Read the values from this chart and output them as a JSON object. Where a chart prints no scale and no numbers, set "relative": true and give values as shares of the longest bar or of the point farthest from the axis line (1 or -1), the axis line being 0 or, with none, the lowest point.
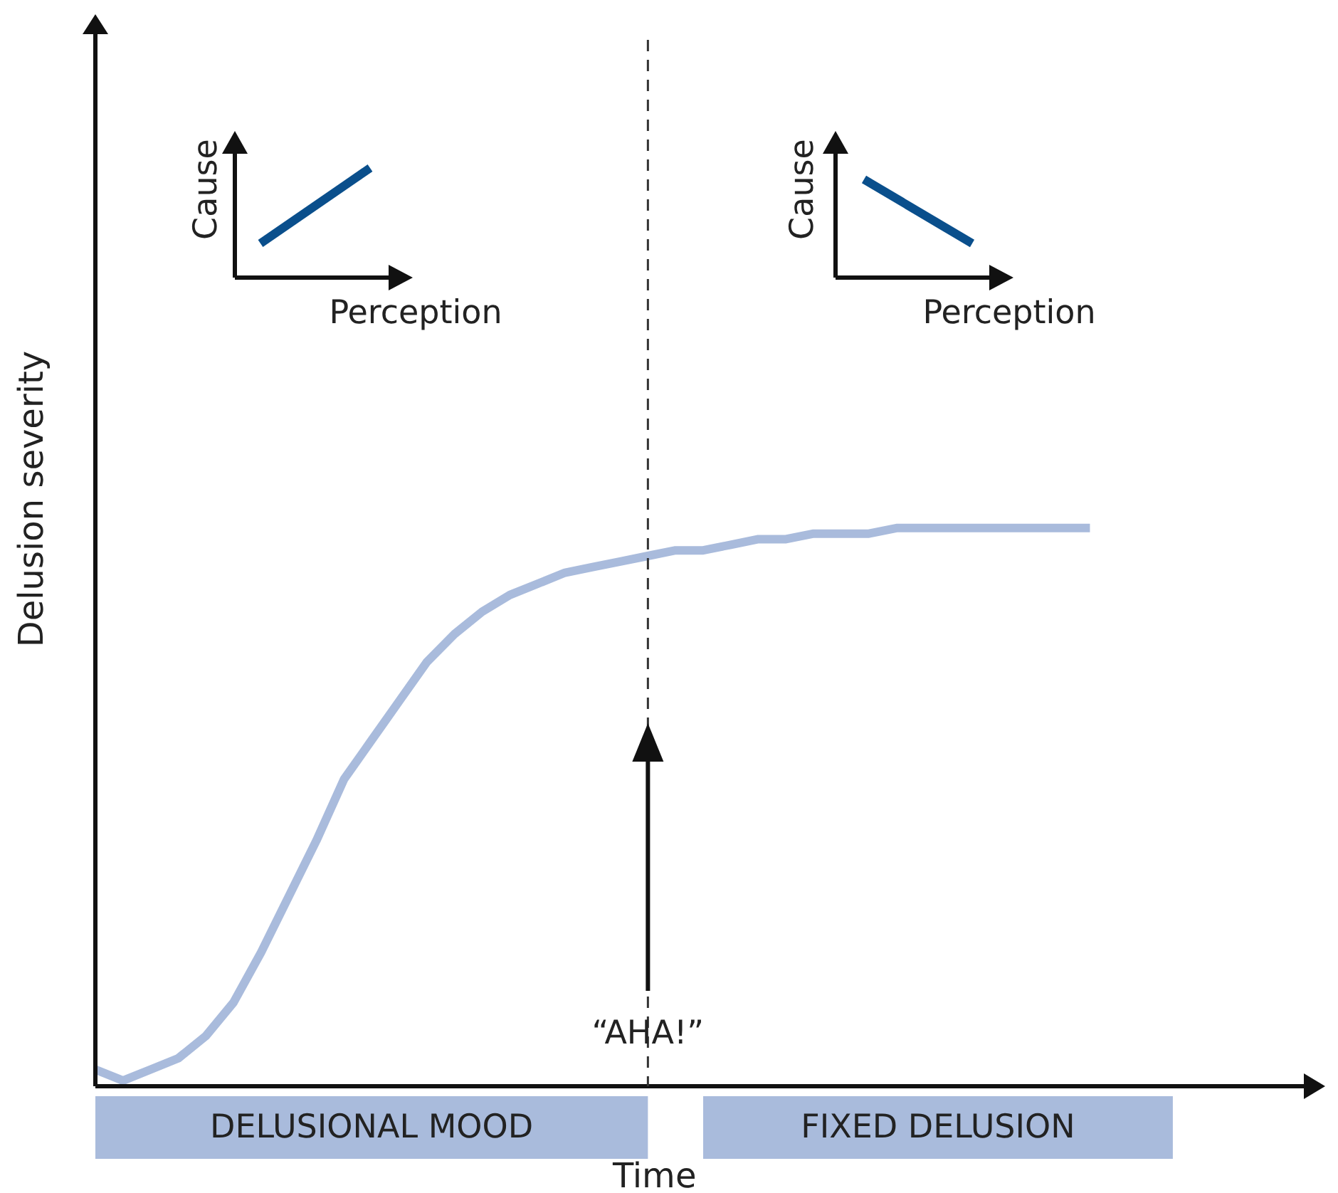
{
  "chart_data": {
    "type": "line",
    "relative": true,
    "xlabel": "Time",
    "ylabel": "Delusion severity",
    "categories": [
      null,
      null,
      null,
      null,
      null,
      null,
      null,
      null,
      null,
      null,
      null,
      null,
      null,
      null,
      null,
      null,
      null,
      null,
      null,
      null,
      null,
      null,
      null,
      null,
      null,
      null,
      null,
      null,
      null,
      null,
      null,
      null,
      null,
      null,
      null,
      null,
      null,
      null,
      null,
      null,
      null,
      null,
      null,
      null,
      null
    ],
    "series": [
      {
        "color": "#a9bbdc",
        "values": [
          0.03,
          0.01,
          0.03,
          0.05,
          0.09,
          0.15,
          0.24,
          0.34,
          0.44,
          0.55,
          0.62,
          0.69,
          0.76,
          0.81,
          0.85,
          0.88,
          0.9,
          0.92,
          0.93,
          0.94,
          0.95,
          0.96,
          0.96,
          0.97,
          0.98,
          0.98,
          0.99,
          0.99,
          0.99,
          1,
          1,
          1,
          1,
          1,
          1,
          1,
          1,
          null,
          null,
          null,
          null,
          null,
          null,
          null,
          null
        ]
      }
    ],
    "annotations": [
      "Cause",
      "Perception",
      "Cause",
      "Perception",
      "“AHA!”",
      "DELUSIONAL MOOD",
      "FIXED DELUSION"
    ],
    "line_style": "solid"
  }
}
